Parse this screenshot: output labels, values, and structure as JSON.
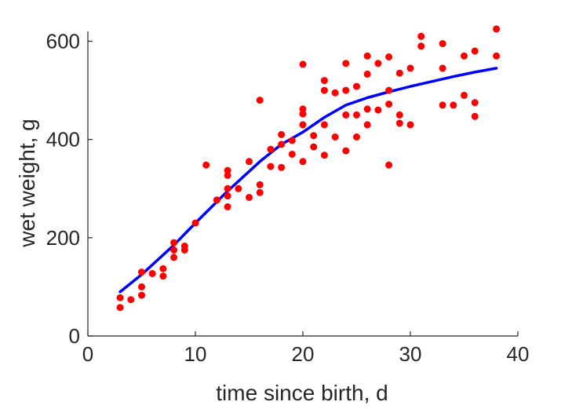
{
  "chart_data": {
    "type": "scatter",
    "title": "",
    "xlabel": "time since birth, d",
    "ylabel": "wet weight, g",
    "xlim": [
      0,
      40
    ],
    "ylim": [
      0,
      620
    ],
    "xticks": [
      0,
      10,
      20,
      30,
      40
    ],
    "yticks": [
      0,
      200,
      400,
      600
    ],
    "grid": false,
    "legend": "none",
    "colors": {
      "points": "#ff0000",
      "fit": "#0000ff",
      "axis": "#262626"
    },
    "series": [
      {
        "kind": "scatter",
        "points": [
          [
            3,
            78
          ],
          [
            3,
            58
          ],
          [
            4,
            74
          ],
          [
            5,
            130
          ],
          [
            5,
            100
          ],
          [
            5,
            83
          ],
          [
            6,
            127
          ],
          [
            7,
            137
          ],
          [
            7,
            122
          ],
          [
            8,
            190
          ],
          [
            8,
            175
          ],
          [
            8,
            160
          ],
          [
            9,
            183
          ],
          [
            9,
            175
          ],
          [
            10,
            230
          ],
          [
            11,
            348
          ],
          [
            12,
            277
          ],
          [
            13,
            337
          ],
          [
            13,
            327
          ],
          [
            13,
            300
          ],
          [
            13,
            285
          ],
          [
            13,
            263
          ],
          [
            14,
            300
          ],
          [
            15,
            355
          ],
          [
            15,
            282
          ],
          [
            16,
            480
          ],
          [
            16,
            308
          ],
          [
            16,
            292
          ],
          [
            17,
            380
          ],
          [
            17,
            345
          ],
          [
            18,
            410
          ],
          [
            18,
            390
          ],
          [
            18,
            343
          ],
          [
            19,
            398
          ],
          [
            19,
            370
          ],
          [
            20,
            553
          ],
          [
            20,
            462
          ],
          [
            20,
            452
          ],
          [
            20,
            430
          ],
          [
            20,
            355
          ],
          [
            21,
            408
          ],
          [
            21,
            385
          ],
          [
            22,
            520
          ],
          [
            22,
            500
          ],
          [
            22,
            430
          ],
          [
            22,
            368
          ],
          [
            23,
            495
          ],
          [
            23,
            405
          ],
          [
            24,
            555
          ],
          [
            24,
            500
          ],
          [
            24,
            450
          ],
          [
            24,
            377
          ],
          [
            25,
            508
          ],
          [
            25,
            450
          ],
          [
            25,
            405
          ],
          [
            26,
            570
          ],
          [
            26,
            533
          ],
          [
            26,
            462
          ],
          [
            26,
            430
          ],
          [
            27,
            555
          ],
          [
            27,
            460
          ],
          [
            28,
            568
          ],
          [
            28,
            500
          ],
          [
            28,
            472
          ],
          [
            28,
            348
          ],
          [
            29,
            535
          ],
          [
            29,
            450
          ],
          [
            29,
            433
          ],
          [
            30,
            545
          ],
          [
            30,
            430
          ],
          [
            31,
            610
          ],
          [
            31,
            590
          ],
          [
            33,
            595
          ],
          [
            33,
            545
          ],
          [
            33,
            470
          ],
          [
            34,
            470
          ],
          [
            35,
            570
          ],
          [
            35,
            490
          ],
          [
            36,
            580
          ],
          [
            36,
            475
          ],
          [
            36,
            447
          ],
          [
            38,
            625
          ],
          [
            38,
            570
          ]
        ]
      },
      {
        "kind": "line",
        "x": [
          3,
          5,
          8,
          10,
          13,
          16,
          18,
          20,
          22,
          24,
          26,
          28,
          30,
          32,
          34,
          36,
          38
        ],
        "y": [
          90,
          125,
          185,
          230,
          295,
          355,
          390,
          415,
          445,
          470,
          485,
          497,
          508,
          518,
          528,
          537,
          545
        ]
      }
    ]
  }
}
